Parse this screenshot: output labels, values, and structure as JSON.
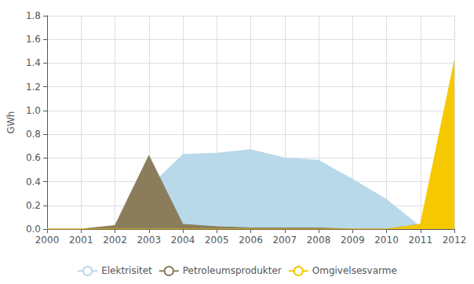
{
  "chart_data": {
    "type": "area",
    "x": [
      2000,
      2001,
      2002,
      2003,
      2004,
      2005,
      2006,
      2007,
      2008,
      2009,
      2010,
      2011,
      2012
    ],
    "series": [
      {
        "name": "Elektrisitet",
        "color": "#b8d9ea",
        "values": [
          0.0,
          0.0,
          0.02,
          0.35,
          0.63,
          0.64,
          0.67,
          0.6,
          0.58,
          0.42,
          0.25,
          0.02,
          0.3
        ]
      },
      {
        "name": "Petroleumsprodukter",
        "color": "#8b7d5c",
        "values": [
          0.0,
          0.0,
          0.03,
          0.62,
          0.04,
          0.02,
          0.01,
          0.01,
          0.01,
          0.0,
          0.0,
          0.04,
          0.0
        ]
      },
      {
        "name": "Omgivelsesvarme",
        "color": "#f5c800",
        "values": [
          0.0,
          0.0,
          0.0,
          0.0,
          0.0,
          0.0,
          0.0,
          0.0,
          0.0,
          0.0,
          0.0,
          0.04,
          1.42
        ]
      }
    ],
    "xlim": [
      2000,
      2012
    ],
    "xticks": [
      2000,
      2001,
      2002,
      2003,
      2004,
      2005,
      2006,
      2007,
      2008,
      2009,
      2010,
      2011,
      2012
    ],
    "ylim": [
      0.0,
      1.8
    ],
    "yticks": [
      {
        "value": 0.0,
        "label": "0.0"
      },
      0.2,
      0.4,
      0.6,
      0.8,
      {
        "value": 1.0,
        "label": "1.0"
      },
      1.2,
      1.4,
      1.6,
      1.8
    ],
    "ylabel": "GWh",
    "grid": true,
    "legend": "bottom"
  }
}
